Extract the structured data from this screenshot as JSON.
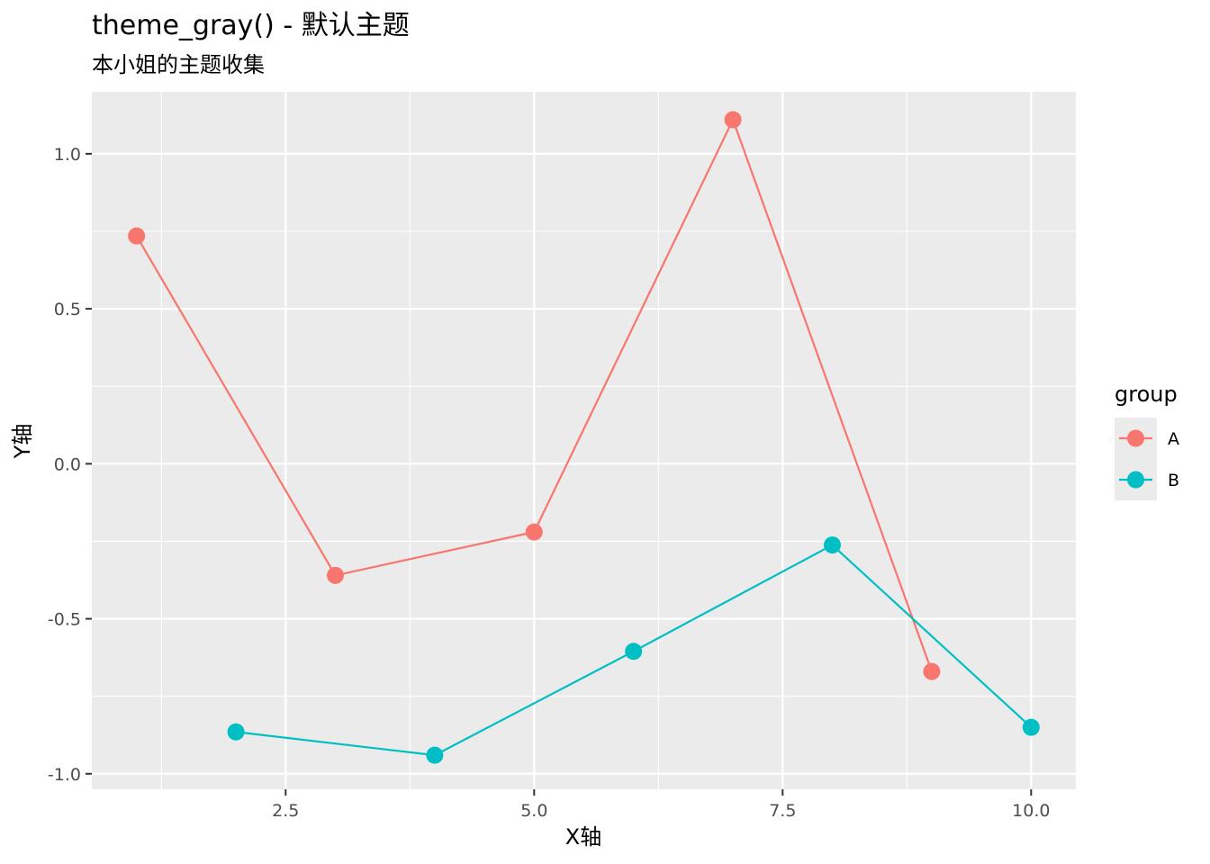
{
  "chart_data": {
    "type": "line",
    "title": "theme_gray() - 默认主题",
    "subtitle": "本小姐的主题收集",
    "xlabel": "X轴",
    "ylabel": "Y轴",
    "xlim": [
      0.55,
      10.45
    ],
    "ylim": [
      -1.05,
      1.2
    ],
    "x_ticks": [
      2.5,
      5.0,
      7.5,
      10.0
    ],
    "x_tick_labels": [
      "2.5",
      "5.0",
      "7.5",
      "10.0"
    ],
    "y_ticks": [
      -1.0,
      -0.5,
      0.0,
      0.5,
      1.0
    ],
    "y_tick_labels": [
      "-1.0",
      "-0.5",
      "0.0",
      "0.5",
      "1.0"
    ],
    "grid": true,
    "legend": {
      "title": "group",
      "placement": "right"
    },
    "series": [
      {
        "name": "A",
        "color": "#F8766D",
        "x": [
          1,
          3,
          5,
          7,
          9
        ],
        "y": [
          0.735,
          -0.36,
          -0.22,
          1.11,
          -0.67
        ]
      },
      {
        "name": "B",
        "color": "#00BFC4",
        "x": [
          2,
          4,
          6,
          8,
          10
        ],
        "y": [
          -0.865,
          -0.94,
          -0.605,
          -0.262,
          -0.85
        ]
      }
    ]
  }
}
